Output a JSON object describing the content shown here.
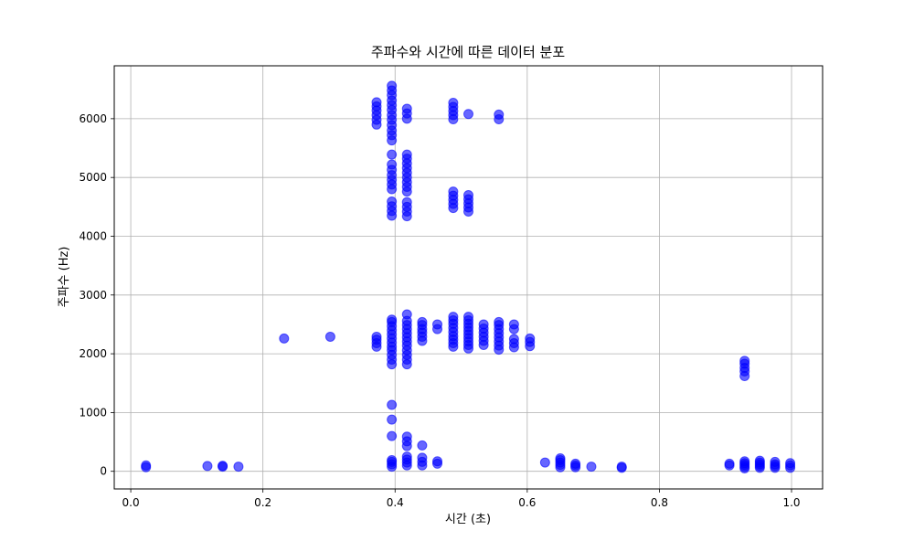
{
  "chart_data": {
    "type": "scatter",
    "title": "주파수와 시간에 따른 데이터 분포",
    "xlabel": "시간 (초)",
    "ylabel": "주파수 (Hz)",
    "xlim": [
      -0.025,
      1.047
    ],
    "ylim": [
      -300,
      6900
    ],
    "xticks": [
      0.0,
      0.2,
      0.4,
      0.6,
      0.8,
      1.0
    ],
    "xtick_labels": [
      "0.0",
      "0.2",
      "0.4",
      "0.6",
      "0.8",
      "1.0"
    ],
    "yticks": [
      0,
      1000,
      2000,
      3000,
      4000,
      5000,
      6000
    ],
    "ytick_labels": [
      "0",
      "1000",
      "2000",
      "3000",
      "4000",
      "5000",
      "6000"
    ],
    "grid": true,
    "marker_color": "#0000ff",
    "marker_alpha": 0.6,
    "series": [
      {
        "name": "data",
        "points": [
          [
            0.023,
            70
          ],
          [
            0.023,
            100
          ],
          [
            0.116,
            90
          ],
          [
            0.139,
            80
          ],
          [
            0.139,
            95
          ],
          [
            0.163,
            80
          ],
          [
            0.232,
            2260
          ],
          [
            0.302,
            2290
          ],
          [
            0.372,
            2120
          ],
          [
            0.372,
            2180
          ],
          [
            0.372,
            2240
          ],
          [
            0.372,
            2290
          ],
          [
            0.372,
            5900
          ],
          [
            0.372,
            5980
          ],
          [
            0.372,
            6060
          ],
          [
            0.372,
            6140
          ],
          [
            0.372,
            6210
          ],
          [
            0.372,
            6280
          ],
          [
            0.395,
            80
          ],
          [
            0.395,
            120
          ],
          [
            0.395,
            160
          ],
          [
            0.395,
            190
          ],
          [
            0.395,
            600
          ],
          [
            0.395,
            880
          ],
          [
            0.395,
            1130
          ],
          [
            0.395,
            1820
          ],
          [
            0.395,
            1900
          ],
          [
            0.395,
            1980
          ],
          [
            0.395,
            2060
          ],
          [
            0.395,
            2120
          ],
          [
            0.395,
            2190
          ],
          [
            0.395,
            2260
          ],
          [
            0.395,
            2330
          ],
          [
            0.395,
            2400
          ],
          [
            0.395,
            2470
          ],
          [
            0.395,
            2540
          ],
          [
            0.395,
            2580
          ],
          [
            0.395,
            4350
          ],
          [
            0.395,
            4430
          ],
          [
            0.395,
            4510
          ],
          [
            0.395,
            4590
          ],
          [
            0.395,
            4800
          ],
          [
            0.395,
            4880
          ],
          [
            0.395,
            4960
          ],
          [
            0.395,
            5040
          ],
          [
            0.395,
            5130
          ],
          [
            0.395,
            5220
          ],
          [
            0.395,
            5390
          ],
          [
            0.395,
            5630
          ],
          [
            0.395,
            5720
          ],
          [
            0.395,
            5800
          ],
          [
            0.395,
            5890
          ],
          [
            0.395,
            5980
          ],
          [
            0.395,
            6060
          ],
          [
            0.395,
            6150
          ],
          [
            0.395,
            6230
          ],
          [
            0.395,
            6310
          ],
          [
            0.395,
            6400
          ],
          [
            0.395,
            6480
          ],
          [
            0.395,
            6560
          ],
          [
            0.418,
            100
          ],
          [
            0.418,
            150
          ],
          [
            0.418,
            200
          ],
          [
            0.418,
            250
          ],
          [
            0.418,
            430
          ],
          [
            0.418,
            510
          ],
          [
            0.418,
            590
          ],
          [
            0.418,
            1820
          ],
          [
            0.418,
            1900
          ],
          [
            0.418,
            1980
          ],
          [
            0.418,
            2060
          ],
          [
            0.418,
            2140
          ],
          [
            0.418,
            2210
          ],
          [
            0.418,
            2280
          ],
          [
            0.418,
            2350
          ],
          [
            0.418,
            2420
          ],
          [
            0.418,
            2490
          ],
          [
            0.418,
            2560
          ],
          [
            0.418,
            2670
          ],
          [
            0.418,
            4340
          ],
          [
            0.418,
            4420
          ],
          [
            0.418,
            4500
          ],
          [
            0.418,
            4580
          ],
          [
            0.418,
            4760
          ],
          [
            0.418,
            4840
          ],
          [
            0.418,
            4920
          ],
          [
            0.418,
            5000
          ],
          [
            0.418,
            5080
          ],
          [
            0.418,
            5160
          ],
          [
            0.418,
            5240
          ],
          [
            0.418,
            5320
          ],
          [
            0.418,
            5390
          ],
          [
            0.418,
            6000
          ],
          [
            0.418,
            6090
          ],
          [
            0.418,
            6170
          ],
          [
            0.441,
            100
          ],
          [
            0.441,
            160
          ],
          [
            0.441,
            230
          ],
          [
            0.441,
            440
          ],
          [
            0.441,
            2220
          ],
          [
            0.441,
            2290
          ],
          [
            0.441,
            2360
          ],
          [
            0.441,
            2420
          ],
          [
            0.441,
            2490
          ],
          [
            0.441,
            2540
          ],
          [
            0.464,
            130
          ],
          [
            0.464,
            170
          ],
          [
            0.464,
            2420
          ],
          [
            0.464,
            2500
          ],
          [
            0.488,
            2120
          ],
          [
            0.488,
            2180
          ],
          [
            0.488,
            2240
          ],
          [
            0.488,
            2300
          ],
          [
            0.488,
            2370
          ],
          [
            0.488,
            2440
          ],
          [
            0.488,
            2510
          ],
          [
            0.488,
            2570
          ],
          [
            0.488,
            2630
          ],
          [
            0.488,
            4480
          ],
          [
            0.488,
            4550
          ],
          [
            0.488,
            4620
          ],
          [
            0.488,
            4690
          ],
          [
            0.488,
            4760
          ],
          [
            0.488,
            5990
          ],
          [
            0.488,
            6060
          ],
          [
            0.488,
            6130
          ],
          [
            0.488,
            6200
          ],
          [
            0.488,
            6270
          ],
          [
            0.511,
            2090
          ],
          [
            0.511,
            2150
          ],
          [
            0.511,
            2210
          ],
          [
            0.511,
            2270
          ],
          [
            0.511,
            2330
          ],
          [
            0.511,
            2390
          ],
          [
            0.511,
            2450
          ],
          [
            0.511,
            2510
          ],
          [
            0.511,
            2570
          ],
          [
            0.511,
            2630
          ],
          [
            0.511,
            4420
          ],
          [
            0.511,
            4490
          ],
          [
            0.511,
            4560
          ],
          [
            0.511,
            4630
          ],
          [
            0.511,
            4700
          ],
          [
            0.511,
            6080
          ],
          [
            0.534,
            2150
          ],
          [
            0.534,
            2220
          ],
          [
            0.534,
            2290
          ],
          [
            0.534,
            2360
          ],
          [
            0.534,
            2430
          ],
          [
            0.534,
            2500
          ],
          [
            0.557,
            2070
          ],
          [
            0.557,
            2140
          ],
          [
            0.557,
            2210
          ],
          [
            0.557,
            2280
          ],
          [
            0.557,
            2350
          ],
          [
            0.557,
            2420
          ],
          [
            0.557,
            2490
          ],
          [
            0.557,
            2540
          ],
          [
            0.557,
            5990
          ],
          [
            0.557,
            6070
          ],
          [
            0.58,
            2110
          ],
          [
            0.58,
            2180
          ],
          [
            0.58,
            2250
          ],
          [
            0.58,
            2420
          ],
          [
            0.58,
            2500
          ],
          [
            0.604,
            2130
          ],
          [
            0.604,
            2200
          ],
          [
            0.604,
            2260
          ],
          [
            0.627,
            150
          ],
          [
            0.65,
            70
          ],
          [
            0.65,
            110
          ],
          [
            0.65,
            150
          ],
          [
            0.65,
            190
          ],
          [
            0.65,
            220
          ],
          [
            0.673,
            70
          ],
          [
            0.673,
            100
          ],
          [
            0.673,
            130
          ],
          [
            0.697,
            80
          ],
          [
            0.743,
            60
          ],
          [
            0.743,
            80
          ],
          [
            0.906,
            100
          ],
          [
            0.906,
            130
          ],
          [
            0.929,
            50
          ],
          [
            0.929,
            80
          ],
          [
            0.929,
            110
          ],
          [
            0.929,
            140
          ],
          [
            0.929,
            170
          ],
          [
            0.929,
            1620
          ],
          [
            0.929,
            1700
          ],
          [
            0.929,
            1760
          ],
          [
            0.929,
            1830
          ],
          [
            0.929,
            1880
          ],
          [
            0.952,
            60
          ],
          [
            0.952,
            90
          ],
          [
            0.952,
            120
          ],
          [
            0.952,
            150
          ],
          [
            0.952,
            180
          ],
          [
            0.975,
            60
          ],
          [
            0.975,
            90
          ],
          [
            0.975,
            120
          ],
          [
            0.975,
            160
          ],
          [
            0.998,
            60
          ],
          [
            0.998,
            100
          ],
          [
            0.998,
            140
          ]
        ]
      }
    ]
  }
}
